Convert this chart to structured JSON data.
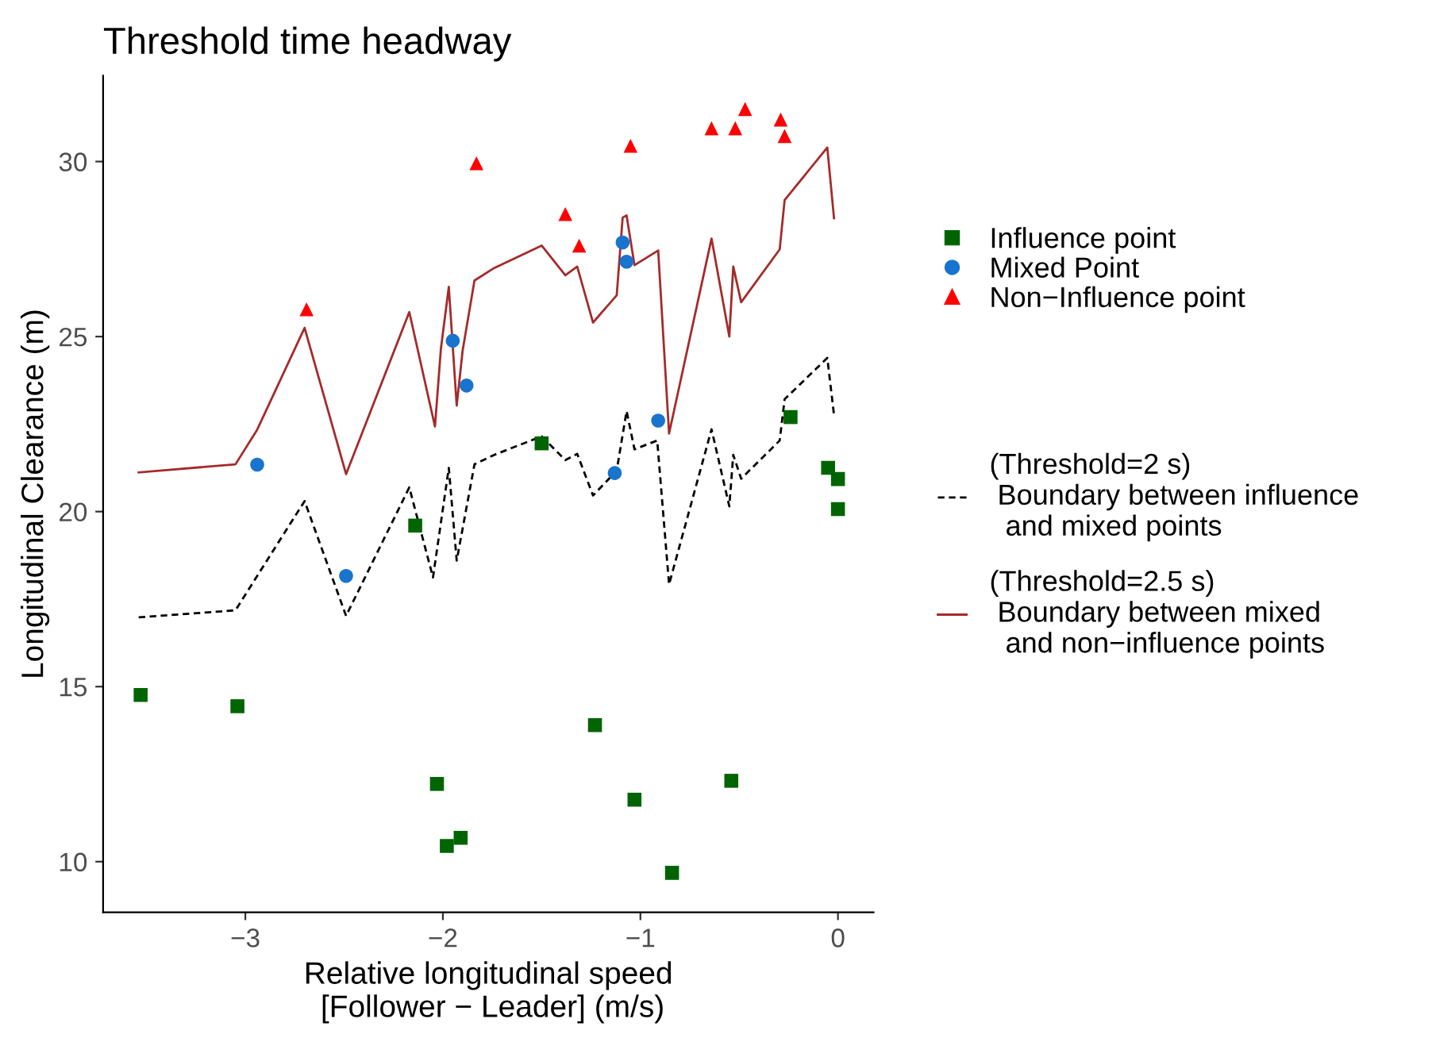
{
  "chart_data": {
    "type": "scatter",
    "title": "Threshold time headway",
    "xlabel": "Relative longitudinal speed\n [Follower − Leader] (m/s)",
    "ylabel": "Longitudinal Clearance (m)",
    "xlim": [
      -3.72,
      0.18
    ],
    "ylim": [
      8.55,
      32.45
    ],
    "xticks": [
      {
        "value": -3,
        "label": "−3"
      },
      {
        "value": -2,
        "label": "−2"
      },
      {
        "value": -1,
        "label": "−1"
      },
      {
        "value": 0,
        "label": "0"
      }
    ],
    "yticks": [
      10,
      15,
      20,
      25,
      30
    ],
    "grid": false,
    "legend": "right",
    "series": [
      {
        "name": "Influence point",
        "marker": "square",
        "color": "#006400",
        "x": [
          -3.53,
          -3.04,
          -2.14,
          -2.03,
          -1.98,
          -1.91,
          -1.5,
          -1.23,
          -1.03,
          -0.84,
          -0.54,
          -0.24,
          -0.05,
          0.0,
          0.0
        ],
        "values": [
          14.76,
          14.44,
          19.6,
          12.22,
          10.45,
          10.68,
          21.95,
          13.9,
          11.77,
          9.68,
          12.31,
          22.7,
          21.25,
          20.93,
          20.07
        ]
      },
      {
        "name": "Mixed Point",
        "marker": "circle",
        "color": "#1874cd",
        "x": [
          -2.94,
          -2.49,
          -1.95,
          -1.88,
          -1.13,
          -1.09,
          -1.07,
          -0.91
        ],
        "values": [
          21.34,
          18.16,
          24.88,
          23.6,
          21.1,
          27.69,
          27.14,
          22.6
        ]
      },
      {
        "name": "Non−Influence point",
        "marker": "triangle",
        "color": "#ff0000",
        "x": [
          -2.69,
          -1.83,
          -1.38,
          -1.31,
          -1.05,
          -0.64,
          -0.52,
          -0.47,
          -0.29,
          -0.27
        ],
        "values": [
          25.78,
          29.95,
          28.5,
          27.6,
          30.45,
          30.95,
          30.95,
          31.5,
          31.2,
          30.73
        ]
      },
      {
        "name": "(Threshold=2 s)\n Boundary between influence\n  and mixed points",
        "type": "line",
        "line_style": "dashed",
        "marker": "none",
        "color": "#000000",
        "x": [
          -3.54,
          -3.05,
          -2.7,
          -2.49,
          -2.17,
          -2.05,
          -1.97,
          -1.93,
          -1.84,
          -1.74,
          -1.5,
          -1.38,
          -1.32,
          -1.24,
          -1.12,
          -1.07,
          -1.03,
          -0.915,
          -0.855,
          -0.64,
          -0.55,
          -0.53,
          -0.49,
          -0.295,
          -0.27,
          -0.054,
          -0.02
        ],
        "values": [
          16.98,
          17.18,
          20.3,
          17.02,
          20.69,
          18.12,
          21.25,
          18.6,
          21.35,
          21.62,
          22.15,
          21.47,
          21.65,
          20.46,
          21.17,
          22.87,
          21.78,
          22.03,
          17.92,
          22.35,
          20.15,
          21.62,
          20.94,
          22.03,
          23.21,
          24.39,
          22.76
        ]
      },
      {
        "name": "(Threshold=2.5 s)\n Boundary between mixed\n  and non−influence points",
        "type": "line",
        "line_style": "solid",
        "marker": "none",
        "color": "#a52a2a",
        "x": [
          -3.54,
          -3.05,
          -2.94,
          -2.7,
          -2.49,
          -2.17,
          -2.04,
          -2.01,
          -1.97,
          -1.93,
          -1.9,
          -1.84,
          -1.74,
          -1.5,
          -1.38,
          -1.32,
          -1.24,
          -1.12,
          -1.09,
          -1.07,
          -1.03,
          -0.91,
          -0.855,
          -0.64,
          -0.55,
          -0.53,
          -0.49,
          -0.295,
          -0.27,
          -0.054,
          -0.02
        ],
        "values": [
          21.12,
          21.35,
          22.34,
          25.25,
          21.07,
          25.7,
          22.43,
          24.65,
          26.42,
          23.03,
          24.6,
          26.6,
          26.96,
          27.6,
          26.75,
          27.0,
          25.4,
          26.18,
          28.4,
          28.46,
          27.04,
          27.46,
          22.23,
          27.8,
          25.0,
          27.0,
          25.98,
          27.49,
          28.9,
          30.4,
          28.38
        ]
      }
    ]
  }
}
